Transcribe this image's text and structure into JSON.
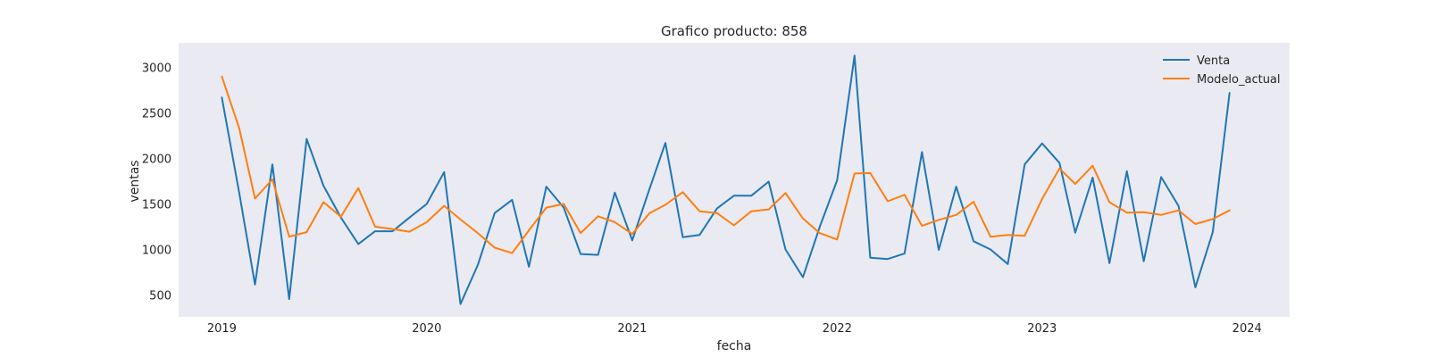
{
  "chart_data": {
    "type": "line",
    "title": "Grafico producto: 858",
    "xlabel": "fecha",
    "ylabel": "ventas",
    "x": [
      "2019-01",
      "2019-02",
      "2019-03",
      "2019-04",
      "2019-05",
      "2019-06",
      "2019-07",
      "2019-08",
      "2019-09",
      "2019-10",
      "2019-11",
      "2019-12",
      "2020-01",
      "2020-02",
      "2020-03",
      "2020-04",
      "2020-05",
      "2020-06",
      "2020-07",
      "2020-08",
      "2020-09",
      "2020-10",
      "2020-11",
      "2020-12",
      "2021-01",
      "2021-02",
      "2021-03",
      "2021-04",
      "2021-05",
      "2021-06",
      "2021-07",
      "2021-08",
      "2021-09",
      "2021-10",
      "2021-11",
      "2021-12",
      "2022-01",
      "2022-02",
      "2022-03",
      "2022-04",
      "2022-05",
      "2022-06",
      "2022-07",
      "2022-08",
      "2022-09",
      "2022-10",
      "2022-11",
      "2022-12",
      "2023-01",
      "2023-02",
      "2023-03",
      "2023-04",
      "2023-05",
      "2023-06",
      "2023-07",
      "2023-08",
      "2023-09",
      "2023-10",
      "2023-11",
      "2023-12"
    ],
    "series": [
      {
        "name": "Venta",
        "color": "#1f77b4",
        "values": [
          2670,
          1620,
          615,
          1935,
          455,
          2215,
          1700,
          1350,
          1060,
          1200,
          1200,
          1350,
          1500,
          1850,
          400,
          830,
          1400,
          1545,
          810,
          1690,
          1460,
          950,
          940,
          1625,
          1100,
          1670,
          2170,
          1135,
          1160,
          1450,
          1590,
          1590,
          1745,
          1000,
          695,
          1250,
          1760,
          3130,
          910,
          895,
          955,
          2070,
          995,
          1690,
          1090,
          1000,
          840,
          1935,
          2165,
          1950,
          1185,
          1790,
          850,
          1860,
          870,
          1795,
          1480,
          585,
          1190,
          2720
        ]
      },
      {
        "name": "Modelo_actual",
        "color": "#ff7f0e",
        "values": [
          2900,
          2330,
          1560,
          1770,
          1140,
          1190,
          1520,
          1360,
          1675,
          1250,
          1225,
          1195,
          1300,
          1480,
          1330,
          1180,
          1020,
          960,
          1210,
          1460,
          1500,
          1180,
          1365,
          1300,
          1170,
          1400,
          1490,
          1630,
          1420,
          1400,
          1265,
          1420,
          1440,
          1620,
          1340,
          1180,
          1110,
          1835,
          1840,
          1530,
          1600,
          1260,
          1325,
          1380,
          1525,
          1140,
          1160,
          1150,
          1555,
          1890,
          1720,
          1920,
          1520,
          1405,
          1410,
          1380,
          1430,
          1280,
          1335,
          1430
        ]
      }
    ],
    "xticks": [
      "2019",
      "2020",
      "2021",
      "2022",
      "2023",
      "2024"
    ],
    "yticks": [
      500,
      1000,
      1500,
      2000,
      2500,
      3000
    ],
    "xlim": [
      "2018-10-16",
      "2024-03-17"
    ],
    "ylim": [
      260,
      3270
    ],
    "grid": false,
    "legend": "top-right",
    "plot_background": "#eaeaf2"
  }
}
